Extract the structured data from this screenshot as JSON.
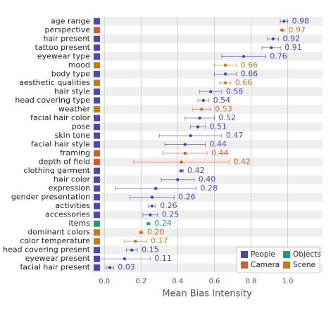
{
  "chart_data": {
    "type": "dot-errorbar",
    "xlabel": "Mean Bias Intensity",
    "categories": [
      "age range",
      "perspective",
      "hair present",
      "tattoo present",
      "eyewear type",
      "mood",
      "body type",
      "aesthetic qualities",
      "hair style",
      "head covering type",
      "weather",
      "facial hair color",
      "pose",
      "skin tone",
      "facial hair style",
      "framing",
      "depth of field",
      "clothing garment",
      "hair color",
      "expression",
      "gender presentation",
      "activities",
      "accessories",
      "items",
      "dominant colors",
      "color temperature",
      "head covering present",
      "eyewear present",
      "facial hair present"
    ],
    "series": [
      {
        "name": "People",
        "color": "#4b47b3",
        "values": [
          0.98,
          null,
          0.92,
          0.91,
          0.76,
          null,
          0.66,
          null,
          0.58,
          0.54,
          null,
          0.52,
          0.51,
          0.47,
          0.44,
          null,
          null,
          0.42,
          0.4,
          0.28,
          0.26,
          0.26,
          0.25,
          null,
          null,
          null,
          0.15,
          0.11,
          0.03
        ],
        "errors": [
          0.02,
          null,
          0.03,
          0.05,
          0.12,
          null,
          0.06,
          null,
          0.06,
          0.03,
          null,
          0.08,
          0.04,
          0.17,
          0.11,
          null,
          null,
          0.01,
          0.09,
          0.22,
          0.12,
          0.02,
          0.04,
          null,
          null,
          null,
          0.03,
          0.14,
          0.02
        ],
        "value_labels": [
          "0.98",
          null,
          "0.92",
          "0.91",
          "0.76",
          null,
          "0.66",
          null,
          "0.58",
          "0.54",
          null,
          "0.52",
          "0.51",
          "0.47",
          "0.44",
          null,
          null,
          "0.42",
          "0.40",
          "0.28",
          "0.26",
          "0.26",
          "0.25",
          null,
          null,
          null,
          "0.15",
          "0.11",
          "0.03"
        ]
      },
      {
        "name": "Camera",
        "color": "#d65a31",
        "values": [
          null,
          0.97,
          null,
          null,
          null,
          null,
          null,
          null,
          null,
          null,
          null,
          null,
          null,
          null,
          null,
          0.44,
          0.42,
          null,
          null,
          null,
          null,
          null,
          null,
          null,
          null,
          null,
          null,
          null,
          null
        ],
        "errors": [
          null,
          0.01,
          null,
          null,
          null,
          null,
          null,
          null,
          null,
          null,
          null,
          null,
          null,
          null,
          null,
          0.12,
          0.26,
          null,
          null,
          null,
          null,
          null,
          null,
          null,
          null,
          null,
          null,
          null,
          null
        ],
        "value_labels": [
          null,
          "0.97",
          null,
          null,
          null,
          null,
          null,
          null,
          null,
          null,
          null,
          null,
          null,
          null,
          null,
          "0.44",
          "0.42",
          null,
          null,
          null,
          null,
          null,
          null,
          null,
          null,
          null,
          null,
          null,
          null
        ]
      },
      {
        "name": "Objects",
        "color": "#1b9e77",
        "values": [
          null,
          null,
          null,
          null,
          null,
          null,
          null,
          null,
          null,
          null,
          null,
          null,
          null,
          null,
          null,
          null,
          null,
          null,
          null,
          null,
          null,
          null,
          null,
          0.24,
          null,
          null,
          null,
          null,
          null
        ],
        "errors": [
          null,
          null,
          null,
          null,
          null,
          null,
          null,
          null,
          null,
          null,
          null,
          null,
          null,
          null,
          null,
          null,
          null,
          null,
          null,
          null,
          null,
          null,
          null,
          0.01,
          null,
          null,
          null,
          null,
          null
        ],
        "value_labels": [
          null,
          null,
          null,
          null,
          null,
          null,
          null,
          null,
          null,
          null,
          null,
          null,
          null,
          null,
          null,
          null,
          null,
          null,
          null,
          null,
          null,
          null,
          null,
          "0.24",
          null,
          null,
          null,
          null,
          null
        ]
      },
      {
        "name": "Scene",
        "color": "#c47a1a",
        "values": [
          null,
          null,
          null,
          null,
          null,
          0.66,
          null,
          0.66,
          null,
          null,
          0.53,
          null,
          null,
          null,
          null,
          null,
          null,
          null,
          null,
          null,
          null,
          null,
          null,
          null,
          0.2,
          0.17,
          null,
          null,
          null
        ],
        "errors": [
          null,
          null,
          null,
          null,
          null,
          0.06,
          null,
          0.03,
          null,
          null,
          0.05,
          null,
          null,
          null,
          null,
          null,
          null,
          null,
          null,
          null,
          null,
          null,
          null,
          null,
          0.01,
          0.06,
          null,
          null,
          null
        ],
        "value_labels": [
          null,
          null,
          null,
          null,
          null,
          "0.66",
          null,
          "0.66",
          null,
          null,
          "0.53",
          null,
          null,
          null,
          null,
          null,
          null,
          null,
          null,
          null,
          null,
          null,
          null,
          null,
          "0.20",
          "0.17",
          null,
          null,
          null
        ]
      }
    ],
    "xlim": [
      -0.07,
      1.19
    ],
    "xticks": [
      {
        "value": 0,
        "label": "0.0"
      },
      0.2,
      0.4,
      0.6,
      0.8,
      {
        "value": 1,
        "label": "1.0"
      }
    ],
    "grid": true,
    "legend": "lower right"
  }
}
